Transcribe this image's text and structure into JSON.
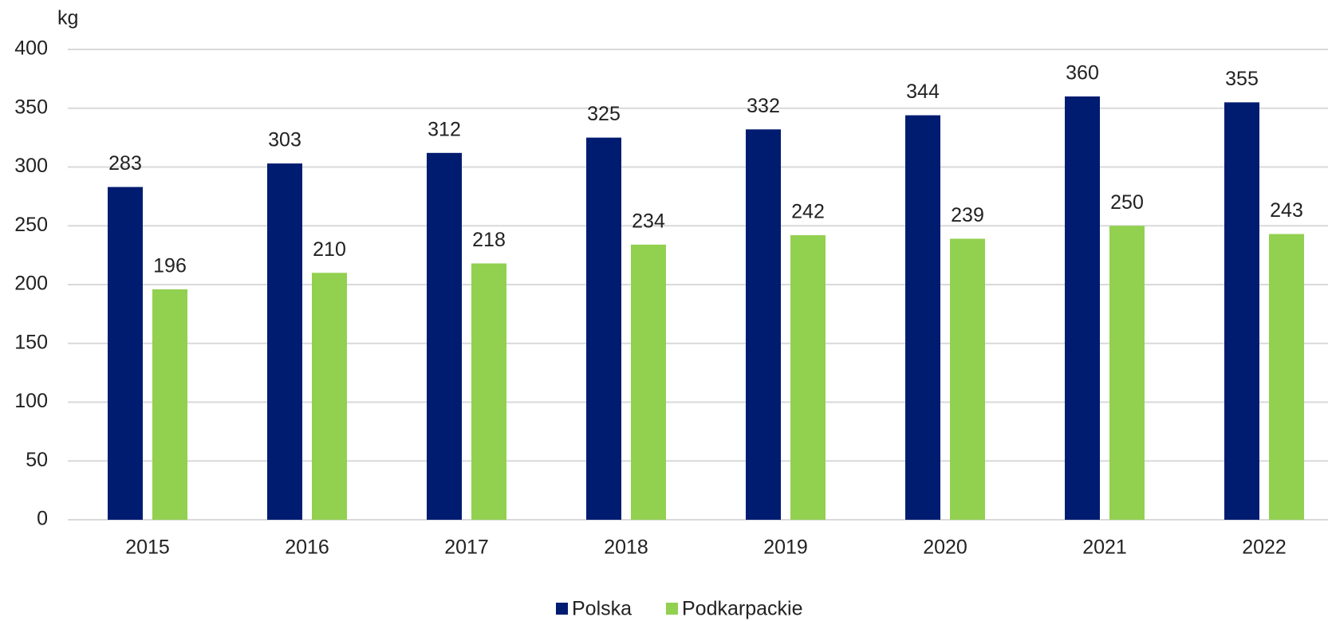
{
  "chart_data": {
    "type": "bar",
    "y_label": "kg",
    "categories": [
      "2015",
      "2016",
      "2017",
      "2018",
      "2019",
      "2020",
      "2021",
      "2022"
    ],
    "series": [
      {
        "name": "Polska",
        "color": "#001c71",
        "values": [
          283,
          303,
          312,
          325,
          332,
          344,
          360,
          355
        ]
      },
      {
        "name": "Podkarpackie",
        "color": "#92d050",
        "values": [
          196,
          210,
          218,
          234,
          242,
          239,
          250,
          243
        ]
      }
    ],
    "ylim": [
      0,
      400
    ],
    "yticks": [
      0,
      50,
      100,
      150,
      200,
      250,
      300,
      350,
      400
    ],
    "grid": true,
    "legend": "bottom"
  }
}
